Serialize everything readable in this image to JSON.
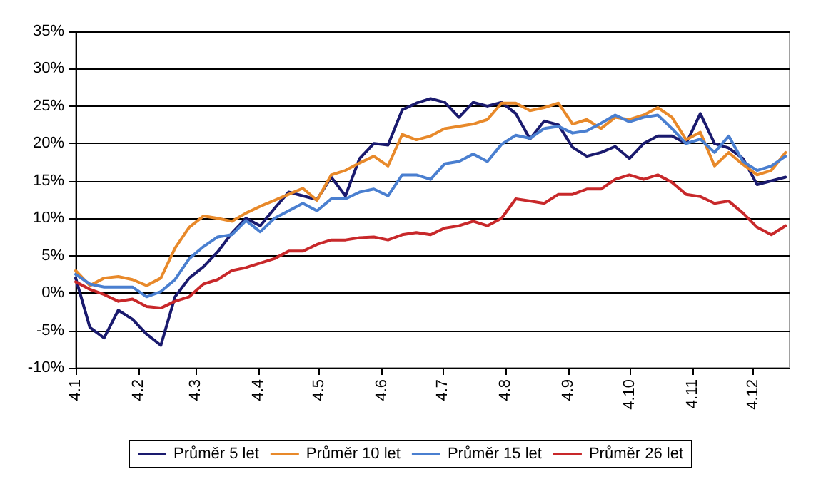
{
  "chart_data": {
    "type": "line",
    "x": [
      "--01-04",
      "--01-11",
      "--01-18",
      "--01-25",
      "--02-01",
      "--02-08",
      "--02-15",
      "--02-22",
      "--03-01",
      "--03-08",
      "--03-15",
      "--03-22",
      "--03-29",
      "--04-05",
      "--04-12",
      "--04-19",
      "--04-26",
      "--05-03",
      "--05-10",
      "--05-17",
      "--05-24",
      "--05-31",
      "--06-07",
      "--06-14",
      "--06-21",
      "--06-28",
      "--07-05",
      "--07-12",
      "--07-19",
      "--07-26",
      "--08-02",
      "--08-09",
      "--08-16",
      "--08-23",
      "--08-30",
      "--09-06",
      "--09-13",
      "--09-20",
      "--09-27",
      "--10-04",
      "--10-11",
      "--10-18",
      "--10-25",
      "--11-01",
      "--11-08",
      "--11-15",
      "--11-22",
      "--11-29",
      "--12-06",
      "--12-13",
      "--12-20"
    ],
    "series": [
      {
        "name": "Průměr 5 let",
        "color": "#1a1a6e",
        "values": [
          2,
          -4.6,
          -6,
          -2.3,
          -3.5,
          -5.5,
          -7,
          -0.5,
          2,
          3.5,
          5.5,
          8,
          10,
          9,
          11.3,
          13.5,
          13,
          12.5,
          15.5,
          13,
          18,
          20,
          19.8,
          24.5,
          25.4,
          26,
          25.5,
          23.5,
          25.5,
          25,
          25.5,
          24,
          20.6,
          23,
          22.5,
          19.5,
          18.3,
          18.8,
          19.6,
          18,
          20,
          21,
          21,
          20,
          24,
          20,
          19.4,
          18,
          14.5,
          15,
          15.5
        ]
      },
      {
        "name": "Průměr 10 let",
        "color": "#e8892a",
        "values": [
          3,
          1,
          2,
          2.2,
          1.8,
          1,
          2,
          6,
          8.8,
          10.3,
          10,
          9.6,
          10.7,
          11.6,
          12.4,
          13.2,
          14,
          12.4,
          15.8,
          16.4,
          17.4,
          18.3,
          17,
          21.2,
          20.5,
          21,
          22,
          22.3,
          22.6,
          23.2,
          25.4,
          25.4,
          24.4,
          24.8,
          25.4,
          22.6,
          23.2,
          22,
          23.5,
          23.2,
          23.8,
          24.8,
          23.5,
          20.5,
          21.5,
          17,
          18.8,
          17.2,
          15.8,
          16.4,
          18.8
        ]
      },
      {
        "name": "Průměr 15 let",
        "color": "#4a7fd0",
        "values": [
          2.5,
          1.2,
          0.8,
          0.8,
          0.8,
          -0.5,
          0.2,
          1.8,
          4.6,
          6.2,
          7.5,
          7.8,
          9.7,
          8.2,
          10,
          11,
          12,
          11,
          12.6,
          12.6,
          13.5,
          13.9,
          13,
          15.8,
          15.8,
          15.2,
          17.3,
          17.6,
          18.6,
          17.6,
          19.9,
          21.1,
          20.7,
          22,
          22.3,
          21.4,
          21.7,
          22.7,
          23.8,
          22.9,
          23.5,
          23.8,
          22,
          20,
          20.6,
          18.8,
          21,
          17.6,
          16.4,
          17,
          18.3
        ]
      },
      {
        "name": "Průměr 26 let",
        "color": "#c8282a",
        "values": [
          1.5,
          0.5,
          -0.2,
          -1.1,
          -0.8,
          -1.8,
          -2,
          -1.1,
          -0.5,
          1.2,
          1.8,
          3,
          3.4,
          4,
          4.6,
          5.6,
          5.6,
          6.5,
          7.1,
          7.1,
          7.4,
          7.5,
          7.1,
          7.8,
          8.1,
          7.8,
          8.7,
          9,
          9.6,
          9,
          10,
          12.6,
          12.3,
          12,
          13.2,
          13.2,
          13.9,
          13.9,
          15.2,
          15.8,
          15.2,
          15.8,
          14.8,
          13.2,
          12.9,
          12,
          12.3,
          10.7,
          8.8,
          7.8,
          9
        ]
      }
    ],
    "xlim": [
      "--01-04",
      "--12-22"
    ],
    "xticks": [
      {
        "value": "--01-04",
        "label": "4.1"
      },
      {
        "value": "--02-04",
        "label": "4.2"
      },
      {
        "value": "--03-04",
        "label": "4.3"
      },
      {
        "value": "--04-04",
        "label": "4.4"
      },
      {
        "value": "--05-04",
        "label": "4.5"
      },
      {
        "value": "--06-04",
        "label": "4.6"
      },
      {
        "value": "--07-04",
        "label": "4.7"
      },
      {
        "value": "--08-04",
        "label": "4.8"
      },
      {
        "value": "--09-04",
        "label": "4.9"
      },
      {
        "value": "--10-04",
        "label": "4.10"
      },
      {
        "value": "--11-04",
        "label": "4.11"
      },
      {
        "value": "--12-04",
        "label": "4.12"
      }
    ],
    "ylim": [
      -10,
      35
    ],
    "yticks": [
      {
        "value": -10,
        "label": "-10%"
      },
      {
        "value": -5,
        "label": "-5%"
      },
      {
        "value": 0,
        "label": "0%"
      },
      {
        "value": 5,
        "label": "5%"
      },
      {
        "value": 10,
        "label": "10%"
      },
      {
        "value": 15,
        "label": "15%"
      },
      {
        "value": 20,
        "label": "20%"
      },
      {
        "value": 25,
        "label": "25%"
      },
      {
        "value": 30,
        "label": "30%"
      },
      {
        "value": 35,
        "label": "35%"
      }
    ],
    "grid": "y",
    "legend": "bottom",
    "marker": "none",
    "line_style": "solid"
  }
}
